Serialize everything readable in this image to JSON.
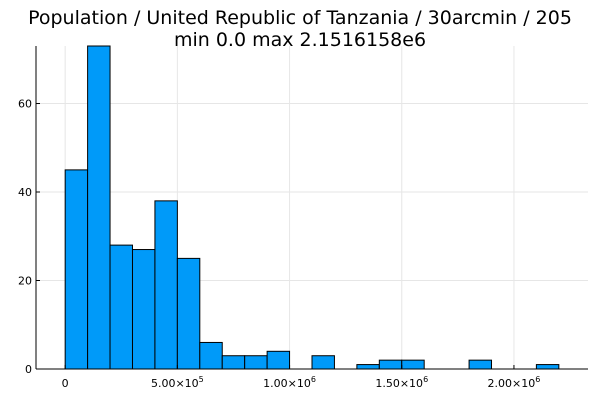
{
  "chart_data": {
    "type": "bar",
    "title": "Population / United Republic of Tanzania / 30arcmin / 205",
    "subtitle": "min 0.0  max 2.1516158e6",
    "xlabel": "",
    "ylabel": "",
    "bin_width": 100000,
    "bins": [
      {
        "x0": 0,
        "x1": 100000,
        "count": 45
      },
      {
        "x0": 100000,
        "x1": 200000,
        "count": 73
      },
      {
        "x0": 200000,
        "x1": 300000,
        "count": 28
      },
      {
        "x0": 300000,
        "x1": 400000,
        "count": 27
      },
      {
        "x0": 400000,
        "x1": 500000,
        "count": 38
      },
      {
        "x0": 500000,
        "x1": 600000,
        "count": 25
      },
      {
        "x0": 600000,
        "x1": 700000,
        "count": 6
      },
      {
        "x0": 700000,
        "x1": 800000,
        "count": 3
      },
      {
        "x0": 800000,
        "x1": 900000,
        "count": 3
      },
      {
        "x0": 900000,
        "x1": 1000000,
        "count": 4
      },
      {
        "x0": 1000000,
        "x1": 1100000,
        "count": 0
      },
      {
        "x0": 1100000,
        "x1": 1200000,
        "count": 3
      },
      {
        "x0": 1200000,
        "x1": 1300000,
        "count": 0
      },
      {
        "x0": 1300000,
        "x1": 1400000,
        "count": 1
      },
      {
        "x0": 1400000,
        "x1": 1500000,
        "count": 2
      },
      {
        "x0": 1500000,
        "x1": 1600000,
        "count": 2
      },
      {
        "x0": 1600000,
        "x1": 1700000,
        "count": 0
      },
      {
        "x0": 1700000,
        "x1": 1800000,
        "count": 0
      },
      {
        "x0": 1800000,
        "x1": 1900000,
        "count": 2
      },
      {
        "x0": 1900000,
        "x1": 2000000,
        "count": 0
      },
      {
        "x0": 2000000,
        "x1": 2100000,
        "count": 0
      },
      {
        "x0": 2100000,
        "x1": 2200000,
        "count": 1
      }
    ],
    "xlim": [
      -130000,
      2330000
    ],
    "ylim": [
      0,
      73
    ],
    "xticks": [
      {
        "value": 0,
        "mantissa": "0",
        "exponent": ""
      },
      {
        "value": 500000,
        "mantissa": "5.00×10",
        "exponent": "5"
      },
      {
        "value": 1000000,
        "mantissa": "1.00×10",
        "exponent": "6"
      },
      {
        "value": 1500000,
        "mantissa": "1.50×10",
        "exponent": "6"
      },
      {
        "value": 2000000,
        "mantissa": "2.00×10",
        "exponent": "6"
      }
    ],
    "yticks": [
      0,
      20,
      40,
      60
    ],
    "grid": true,
    "legend": "none",
    "bar_color": "#009af9",
    "bar_edge_color": "#000000"
  }
}
